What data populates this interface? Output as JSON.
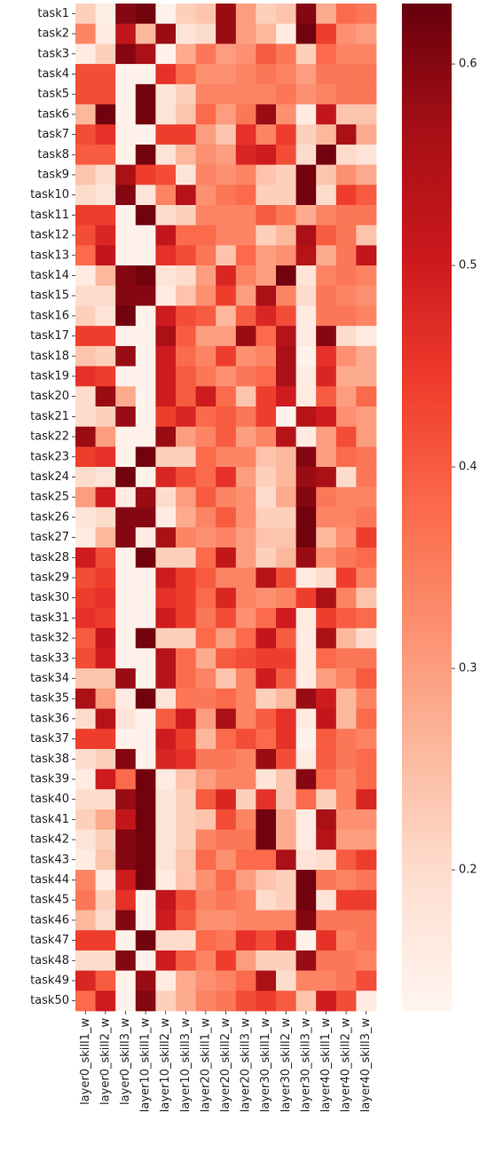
{
  "chart_data": {
    "type": "heatmap",
    "title": "",
    "xlabel": "",
    "ylabel": "",
    "columns": [
      "layer0_skill1_w",
      "layer0_skill2_w",
      "layer0_skill3_w",
      "layer10_skill1_w",
      "layer10_skill2_w",
      "layer10_skill3_w",
      "layer20_skill1_w",
      "layer20_skill2_w",
      "layer20_skill3_w",
      "layer30_skill1_w",
      "layer30_skill2_w",
      "layer30_skill3_w",
      "layer40_skill1_w",
      "layer40_skill2_w",
      "layer40_skill3_w"
    ],
    "rows": [
      "task1",
      "task2",
      "task3",
      "task4",
      "task5",
      "task6",
      "task7",
      "task8",
      "task9",
      "task10",
      "task11",
      "task12",
      "task13",
      "task14",
      "task15",
      "task16",
      "task17",
      "task18",
      "task19",
      "task20",
      "task21",
      "task22",
      "task23",
      "task24",
      "task25",
      "task26",
      "task27",
      "task28",
      "task29",
      "task30",
      "task31",
      "task32",
      "task33",
      "task34",
      "task35",
      "task36",
      "task37",
      "task38",
      "task39",
      "task40",
      "task41",
      "task42",
      "task43",
      "task44",
      "task45",
      "task46",
      "task47",
      "task48",
      "task49",
      "task50"
    ],
    "values": [
      [
        0.22,
        0.15,
        0.6,
        0.62,
        0.14,
        0.22,
        0.24,
        0.58,
        0.3,
        0.22,
        0.24,
        0.6,
        0.28,
        0.38,
        0.36
      ],
      [
        0.34,
        0.16,
        0.52,
        0.26,
        0.58,
        0.18,
        0.2,
        0.58,
        0.3,
        0.26,
        0.16,
        0.62,
        0.44,
        0.32,
        0.3
      ],
      [
        0.16,
        0.22,
        0.6,
        0.56,
        0.14,
        0.28,
        0.36,
        0.3,
        0.32,
        0.4,
        0.36,
        0.22,
        0.38,
        0.34,
        0.34
      ],
      [
        0.42,
        0.42,
        0.14,
        0.14,
        0.46,
        0.38,
        0.32,
        0.32,
        0.34,
        0.36,
        0.34,
        0.3,
        0.36,
        0.36,
        0.36
      ],
      [
        0.42,
        0.42,
        0.14,
        0.62,
        0.18,
        0.22,
        0.34,
        0.34,
        0.34,
        0.34,
        0.36,
        0.32,
        0.34,
        0.36,
        0.36
      ],
      [
        0.26,
        0.62,
        0.14,
        0.62,
        0.18,
        0.24,
        0.38,
        0.3,
        0.36,
        0.58,
        0.32,
        0.16,
        0.52,
        0.24,
        0.24
      ],
      [
        0.42,
        0.46,
        0.14,
        0.14,
        0.44,
        0.44,
        0.3,
        0.24,
        0.46,
        0.34,
        0.44,
        0.22,
        0.26,
        0.56,
        0.28
      ],
      [
        0.4,
        0.4,
        0.14,
        0.62,
        0.18,
        0.26,
        0.32,
        0.3,
        0.48,
        0.5,
        0.42,
        0.2,
        0.62,
        0.2,
        0.18
      ],
      [
        0.24,
        0.2,
        0.56,
        0.44,
        0.42,
        0.18,
        0.34,
        0.32,
        0.34,
        0.24,
        0.22,
        0.62,
        0.24,
        0.32,
        0.28
      ],
      [
        0.2,
        0.18,
        0.6,
        0.18,
        0.34,
        0.54,
        0.32,
        0.36,
        0.38,
        0.22,
        0.22,
        0.62,
        0.2,
        0.44,
        0.4
      ],
      [
        0.44,
        0.44,
        0.14,
        0.62,
        0.2,
        0.22,
        0.34,
        0.34,
        0.34,
        0.4,
        0.36,
        0.28,
        0.34,
        0.36,
        0.36
      ],
      [
        0.42,
        0.48,
        0.14,
        0.14,
        0.52,
        0.38,
        0.38,
        0.34,
        0.34,
        0.22,
        0.26,
        0.56,
        0.4,
        0.36,
        0.24
      ],
      [
        0.38,
        0.52,
        0.14,
        0.14,
        0.46,
        0.42,
        0.36,
        0.24,
        0.38,
        0.3,
        0.32,
        0.54,
        0.28,
        0.36,
        0.52
      ],
      [
        0.16,
        0.26,
        0.6,
        0.62,
        0.18,
        0.2,
        0.3,
        0.48,
        0.34,
        0.3,
        0.62,
        0.18,
        0.34,
        0.36,
        0.34
      ],
      [
        0.2,
        0.2,
        0.6,
        0.6,
        0.16,
        0.24,
        0.32,
        0.44,
        0.3,
        0.56,
        0.34,
        0.2,
        0.36,
        0.34,
        0.32
      ],
      [
        0.22,
        0.18,
        0.62,
        0.14,
        0.5,
        0.42,
        0.4,
        0.26,
        0.4,
        0.48,
        0.42,
        0.16,
        0.36,
        0.36,
        0.34
      ],
      [
        0.44,
        0.44,
        0.14,
        0.14,
        0.56,
        0.4,
        0.3,
        0.3,
        0.58,
        0.38,
        0.54,
        0.16,
        0.6,
        0.2,
        0.16
      ],
      [
        0.24,
        0.22,
        0.58,
        0.14,
        0.5,
        0.38,
        0.34,
        0.44,
        0.32,
        0.34,
        0.56,
        0.14,
        0.46,
        0.32,
        0.28
      ],
      [
        0.46,
        0.44,
        0.14,
        0.14,
        0.5,
        0.4,
        0.36,
        0.32,
        0.36,
        0.38,
        0.56,
        0.16,
        0.48,
        0.28,
        0.28
      ],
      [
        0.2,
        0.58,
        0.28,
        0.14,
        0.5,
        0.4,
        0.5,
        0.38,
        0.24,
        0.44,
        0.5,
        0.16,
        0.4,
        0.3,
        0.38
      ],
      [
        0.2,
        0.22,
        0.58,
        0.14,
        0.44,
        0.48,
        0.38,
        0.4,
        0.36,
        0.44,
        0.14,
        0.54,
        0.5,
        0.32,
        0.3
      ],
      [
        0.58,
        0.3,
        0.14,
        0.14,
        0.58,
        0.3,
        0.34,
        0.4,
        0.3,
        0.34,
        0.54,
        0.16,
        0.3,
        0.42,
        0.3
      ],
      [
        0.44,
        0.46,
        0.14,
        0.62,
        0.22,
        0.22,
        0.38,
        0.34,
        0.34,
        0.24,
        0.26,
        0.6,
        0.3,
        0.38,
        0.36
      ],
      [
        0.2,
        0.18,
        0.62,
        0.14,
        0.48,
        0.42,
        0.38,
        0.46,
        0.3,
        0.22,
        0.26,
        0.58,
        0.56,
        0.2,
        0.36
      ],
      [
        0.3,
        0.5,
        0.16,
        0.58,
        0.2,
        0.3,
        0.4,
        0.34,
        0.32,
        0.2,
        0.28,
        0.6,
        0.36,
        0.34,
        0.34
      ],
      [
        0.18,
        0.2,
        0.6,
        0.6,
        0.16,
        0.28,
        0.34,
        0.4,
        0.32,
        0.22,
        0.22,
        0.62,
        0.34,
        0.34,
        0.36
      ],
      [
        0.16,
        0.26,
        0.6,
        0.16,
        0.56,
        0.34,
        0.32,
        0.34,
        0.3,
        0.24,
        0.24,
        0.62,
        0.26,
        0.32,
        0.44
      ],
      [
        0.5,
        0.42,
        0.14,
        0.62,
        0.22,
        0.22,
        0.38,
        0.52,
        0.3,
        0.22,
        0.26,
        0.58,
        0.32,
        0.36,
        0.38
      ],
      [
        0.42,
        0.44,
        0.14,
        0.14,
        0.5,
        0.44,
        0.4,
        0.34,
        0.34,
        0.54,
        0.42,
        0.16,
        0.2,
        0.44,
        0.34
      ],
      [
        0.44,
        0.46,
        0.14,
        0.14,
        0.46,
        0.44,
        0.38,
        0.48,
        0.34,
        0.32,
        0.34,
        0.44,
        0.56,
        0.34,
        0.24
      ],
      [
        0.46,
        0.44,
        0.14,
        0.14,
        0.5,
        0.44,
        0.36,
        0.42,
        0.32,
        0.38,
        0.5,
        0.16,
        0.44,
        0.4,
        0.38
      ],
      [
        0.4,
        0.52,
        0.14,
        0.62,
        0.22,
        0.22,
        0.38,
        0.3,
        0.38,
        0.52,
        0.4,
        0.16,
        0.56,
        0.26,
        0.2
      ],
      [
        0.42,
        0.5,
        0.14,
        0.14,
        0.54,
        0.38,
        0.28,
        0.4,
        0.42,
        0.44,
        0.44,
        0.16,
        0.38,
        0.36,
        0.36
      ],
      [
        0.24,
        0.24,
        0.58,
        0.14,
        0.54,
        0.38,
        0.34,
        0.24,
        0.34,
        0.5,
        0.4,
        0.16,
        0.3,
        0.34,
        0.4
      ],
      [
        0.56,
        0.3,
        0.16,
        0.62,
        0.18,
        0.36,
        0.36,
        0.38,
        0.34,
        0.22,
        0.26,
        0.58,
        0.5,
        0.26,
        0.34
      ],
      [
        0.2,
        0.54,
        0.18,
        0.14,
        0.4,
        0.5,
        0.3,
        0.56,
        0.34,
        0.4,
        0.46,
        0.16,
        0.52,
        0.26,
        0.38
      ],
      [
        0.44,
        0.44,
        0.14,
        0.14,
        0.5,
        0.44,
        0.26,
        0.38,
        0.42,
        0.38,
        0.46,
        0.14,
        0.4,
        0.36,
        0.34
      ],
      [
        0.2,
        0.22,
        0.6,
        0.14,
        0.48,
        0.46,
        0.36,
        0.36,
        0.34,
        0.58,
        0.42,
        0.16,
        0.4,
        0.36,
        0.38
      ],
      [
        0.16,
        0.5,
        0.38,
        0.62,
        0.16,
        0.24,
        0.3,
        0.34,
        0.34,
        0.18,
        0.24,
        0.6,
        0.38,
        0.34,
        0.38
      ],
      [
        0.2,
        0.2,
        0.58,
        0.62,
        0.18,
        0.22,
        0.4,
        0.48,
        0.22,
        0.46,
        0.24,
        0.38,
        0.22,
        0.34,
        0.48
      ],
      [
        0.22,
        0.28,
        0.52,
        0.62,
        0.18,
        0.22,
        0.24,
        0.42,
        0.34,
        0.62,
        0.28,
        0.16,
        0.56,
        0.32,
        0.32
      ],
      [
        0.18,
        0.22,
        0.6,
        0.62,
        0.18,
        0.22,
        0.34,
        0.36,
        0.36,
        0.62,
        0.28,
        0.16,
        0.54,
        0.3,
        0.3
      ],
      [
        0.16,
        0.24,
        0.6,
        0.62,
        0.18,
        0.24,
        0.38,
        0.32,
        0.38,
        0.38,
        0.56,
        0.18,
        0.2,
        0.4,
        0.44
      ],
      [
        0.34,
        0.16,
        0.5,
        0.62,
        0.16,
        0.24,
        0.32,
        0.38,
        0.3,
        0.24,
        0.22,
        0.62,
        0.36,
        0.34,
        0.36
      ],
      [
        0.36,
        0.22,
        0.46,
        0.14,
        0.52,
        0.42,
        0.34,
        0.36,
        0.34,
        0.2,
        0.22,
        0.62,
        0.18,
        0.44,
        0.44
      ],
      [
        0.26,
        0.2,
        0.6,
        0.14,
        0.5,
        0.4,
        0.32,
        0.32,
        0.34,
        0.34,
        0.34,
        0.6,
        0.36,
        0.36,
        0.36
      ],
      [
        0.44,
        0.44,
        0.14,
        0.62,
        0.2,
        0.2,
        0.38,
        0.36,
        0.46,
        0.42,
        0.5,
        0.14,
        0.46,
        0.34,
        0.36
      ],
      [
        0.2,
        0.2,
        0.6,
        0.14,
        0.5,
        0.4,
        0.34,
        0.44,
        0.3,
        0.22,
        0.22,
        0.58,
        0.36,
        0.36,
        0.34
      ],
      [
        0.48,
        0.4,
        0.14,
        0.58,
        0.16,
        0.28,
        0.32,
        0.34,
        0.38,
        0.56,
        0.2,
        0.34,
        0.34,
        0.36,
        0.42
      ],
      [
        0.38,
        0.5,
        0.14,
        0.6,
        0.22,
        0.28,
        0.34,
        0.36,
        0.42,
        0.44,
        0.4,
        0.24,
        0.5,
        0.42,
        0.16
      ]
    ],
    "colorbar": {
      "colormap": "Reds",
      "vmin": 0.13,
      "vmax": 0.63,
      "ticks": [
        "0.2",
        "0.3",
        "0.4",
        "0.5",
        "0.6"
      ]
    },
    "grid": false,
    "legend": "colorbar-right"
  }
}
